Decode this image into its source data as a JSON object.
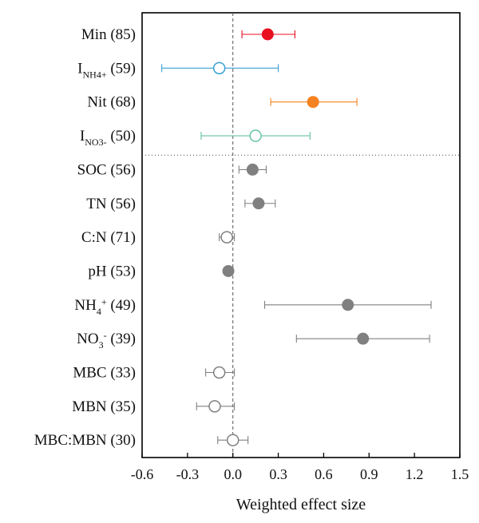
{
  "chart_data": {
    "type": "forest",
    "xlabel": "Weighted effect size",
    "xlim": [
      -0.6,
      1.5
    ],
    "xticks": [
      "-0.6",
      "-0.3",
      "0.0",
      "0.3",
      "0.6",
      "0.9",
      "1.2",
      "1.5"
    ],
    "reference_line": 0.0,
    "group_separator_after_row": 4,
    "grid": false,
    "rows": [
      {
        "label": "Min (85)",
        "main": "Min",
        "sub": "",
        "sup": "",
        "suffix": " (85)",
        "mean": 0.23,
        "lower": 0.06,
        "upper": 0.41,
        "filled": true,
        "color": "#e8101f"
      },
      {
        "label": "INH4+ (59)",
        "main": "I",
        "sub": "NH4+",
        "sup": "",
        "suffix": " (59)",
        "mean": -0.09,
        "lower": -0.47,
        "upper": 0.3,
        "filled": false,
        "color": "#3a9fd5"
      },
      {
        "label": "Nit (68)",
        "main": "Nit",
        "sub": "",
        "sup": "",
        "suffix": " (68)",
        "mean": 0.53,
        "lower": 0.25,
        "upper": 0.82,
        "filled": true,
        "color": "#f58220"
      },
      {
        "label": "INO3- (50)",
        "main": "I",
        "sub": "NO3-",
        "sup": "",
        "suffix": " (50)",
        "mean": 0.15,
        "lower": -0.21,
        "upper": 0.51,
        "filled": false,
        "color": "#66c2a5"
      },
      {
        "label": "SOC (56)",
        "main": "SOC",
        "sub": "",
        "sup": "",
        "suffix": " (56)",
        "mean": 0.13,
        "lower": 0.04,
        "upper": 0.22,
        "filled": true,
        "color": "#808080"
      },
      {
        "label": "TN (56)",
        "main": "TN",
        "sub": "",
        "sup": "",
        "suffix": " (56)",
        "mean": 0.17,
        "lower": 0.08,
        "upper": 0.28,
        "filled": true,
        "color": "#808080"
      },
      {
        "label": "C:N (71)",
        "main": "C:N",
        "sub": "",
        "sup": "",
        "suffix": " (71)",
        "mean": -0.04,
        "lower": -0.09,
        "upper": 0.01,
        "filled": false,
        "color": "#808080"
      },
      {
        "label": "pH (53)",
        "main": "pH",
        "sub": "",
        "sup": "",
        "suffix": " (53)",
        "mean": -0.03,
        "lower": -0.05,
        "upper": -0.01,
        "filled": true,
        "color": "#808080"
      },
      {
        "label": "NH4+ (49)",
        "main": "NH",
        "sub": "4",
        "sup": "+",
        "suffix": " (49)",
        "mean": 0.76,
        "lower": 0.21,
        "upper": 1.31,
        "filled": true,
        "color": "#808080"
      },
      {
        "label": "NO3- (39)",
        "main": "NO",
        "sub": "3",
        "sup": "-",
        "suffix": " (39)",
        "mean": 0.86,
        "lower": 0.42,
        "upper": 1.3,
        "filled": true,
        "color": "#808080"
      },
      {
        "label": "MBC (33)",
        "main": "MBC",
        "sub": "",
        "sup": "",
        "suffix": " (33)",
        "mean": -0.09,
        "lower": -0.18,
        "upper": 0.01,
        "filled": false,
        "color": "#808080"
      },
      {
        "label": "MBN (35)",
        "main": "MBN",
        "sub": "",
        "sup": "",
        "suffix": " (35)",
        "mean": -0.12,
        "lower": -0.24,
        "upper": 0.01,
        "filled": false,
        "color": "#808080"
      },
      {
        "label": "MBC:MBN (30)",
        "main": "MBC:MBN",
        "sub": "",
        "sup": "",
        "suffix": " (30)",
        "mean": 0.0,
        "lower": -0.1,
        "upper": 0.1,
        "filled": false,
        "color": "#808080"
      }
    ]
  }
}
